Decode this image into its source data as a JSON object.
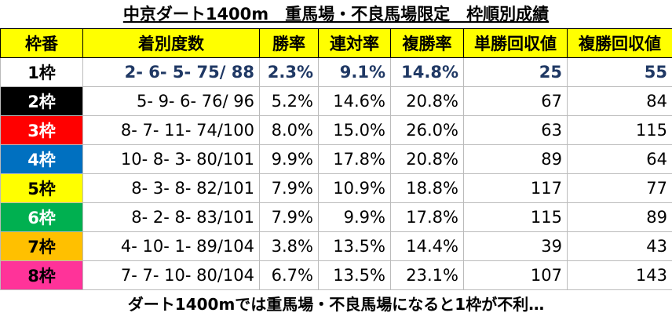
{
  "title": "中京ダート1400m　重馬場・不良馬場限定　枠順別成績",
  "table": {
    "header": [
      "枠番",
      "着別度数",
      "勝率",
      "連対率",
      "複勝率",
      "単勝回収値",
      "複勝回収値"
    ],
    "rows": [
      [
        "1枠",
        "2- 6- 5- 75/ 88",
        "2.3%",
        "9.1%",
        "14.8%",
        25,
        55
      ],
      [
        "2枠",
        "5- 9- 6- 76/ 96",
        "5.2%",
        "14.6%",
        "20.8%",
        67,
        84
      ],
      [
        "3枠",
        "8- 7- 11- 74/100",
        "8.0%",
        "15.0%",
        "26.0%",
        63,
        115
      ],
      [
        "4枠",
        "10- 8- 3- 80/101",
        "9.9%",
        "17.8%",
        "20.8%",
        89,
        64
      ],
      [
        "5枠",
        "8- 3- 8- 82/101",
        "7.9%",
        "10.9%",
        "18.8%",
        117,
        77
      ],
      [
        "6枠",
        "8- 2- 8- 83/101",
        "7.9%",
        "9.9%",
        "17.8%",
        115,
        89
      ],
      [
        "7枠",
        "4- 10- 1- 89/104",
        "3.8%",
        "13.5%",
        "14.4%",
        39,
        43
      ],
      [
        "8枠",
        "7- 7- 10- 80/104",
        "6.7%",
        "13.5%",
        "23.1%",
        107,
        143
      ]
    ]
  },
  "footer": "ダート1400mでは重馬場・不良馬場になると1枠が不利…"
}
